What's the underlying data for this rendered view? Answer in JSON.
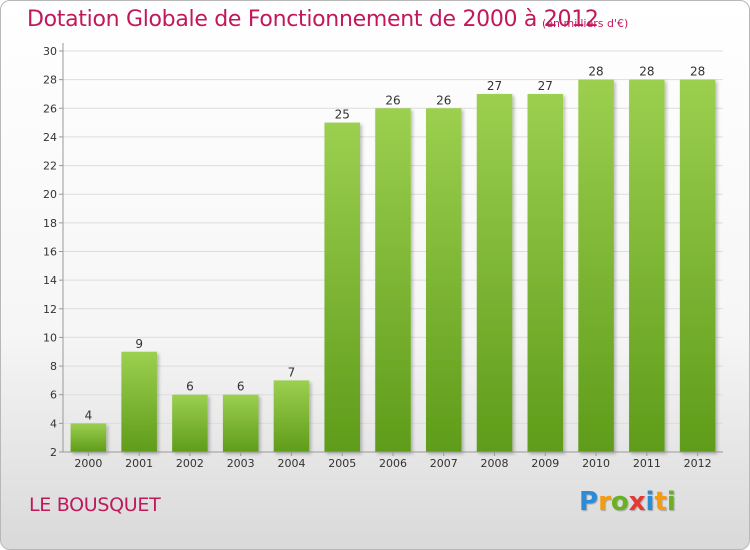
{
  "title": "Dotation Globale de Fonctionnement de 2000 à 2012",
  "unit": "(en milliers d'€)",
  "commune": "LE BOUSQUET",
  "logo": {
    "letters": [
      "P",
      "r",
      "o",
      "x",
      "i",
      "t",
      "i"
    ]
  },
  "colors": {
    "accent": "#c2185b",
    "bar_top": "#9ccf4f",
    "bar_bottom": "#5e9c1a",
    "grid": "#dddddd"
  },
  "chart_data": {
    "type": "bar",
    "categories": [
      "2000",
      "2001",
      "2002",
      "2003",
      "2004",
      "2005",
      "2006",
      "2007",
      "2008",
      "2009",
      "2010",
      "2011",
      "2012"
    ],
    "values": [
      4,
      9,
      6,
      6,
      7,
      25,
      26,
      26,
      27,
      27,
      28,
      28,
      28
    ],
    "data_labels": [
      "4",
      "9",
      "6",
      "6",
      "7",
      "25",
      "26",
      "26",
      "27",
      "27",
      "28",
      "28",
      "28"
    ],
    "y_ticks": [
      "2",
      "4",
      "6",
      "8",
      "10",
      "12",
      "14",
      "16",
      "18",
      "20",
      "22",
      "24",
      "26",
      "28",
      "30"
    ],
    "ylim": [
      2,
      30
    ],
    "grid": true,
    "legend": "none"
  }
}
